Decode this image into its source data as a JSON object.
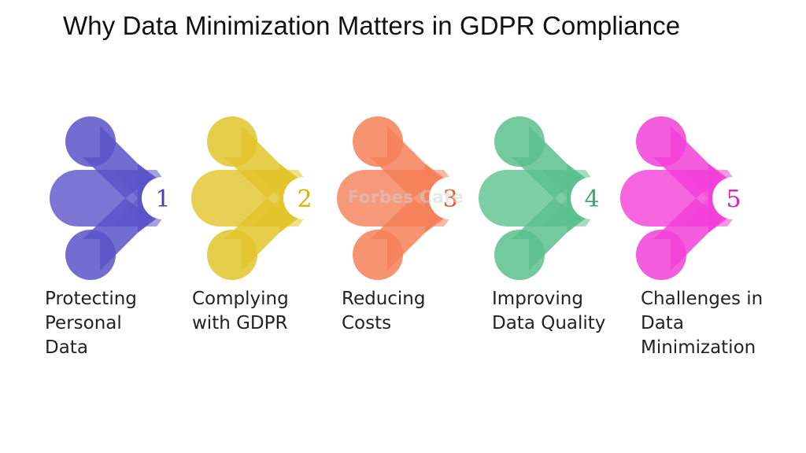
{
  "title": "Why Data Minimization Matters in GDPR Compliance",
  "watermark": "Forbes Cafe",
  "steps": [
    {
      "number": "1",
      "color": "#5b53c9",
      "circle_text": "#4a3fb8",
      "label_lines": [
        "Protecting",
        "Personal",
        "Data"
      ]
    },
    {
      "number": "2",
      "color": "#e2c42a",
      "circle_text": "#d4b400",
      "label_lines": [
        "Complying",
        "with GDPR"
      ]
    },
    {
      "number": "3",
      "color": "#f58058",
      "circle_text": "#e35a2c",
      "label_lines": [
        "Reducing",
        "Costs"
      ]
    },
    {
      "number": "4",
      "color": "#5cc08e",
      "circle_text": "#3aa870",
      "label_lines": [
        "Improving",
        "Data Quality"
      ]
    },
    {
      "number": "5",
      "color": "#f23fd8",
      "circle_text": "#d91fc0",
      "label_lines": [
        "Challenges in",
        "Data",
        "Minimization"
      ]
    }
  ]
}
